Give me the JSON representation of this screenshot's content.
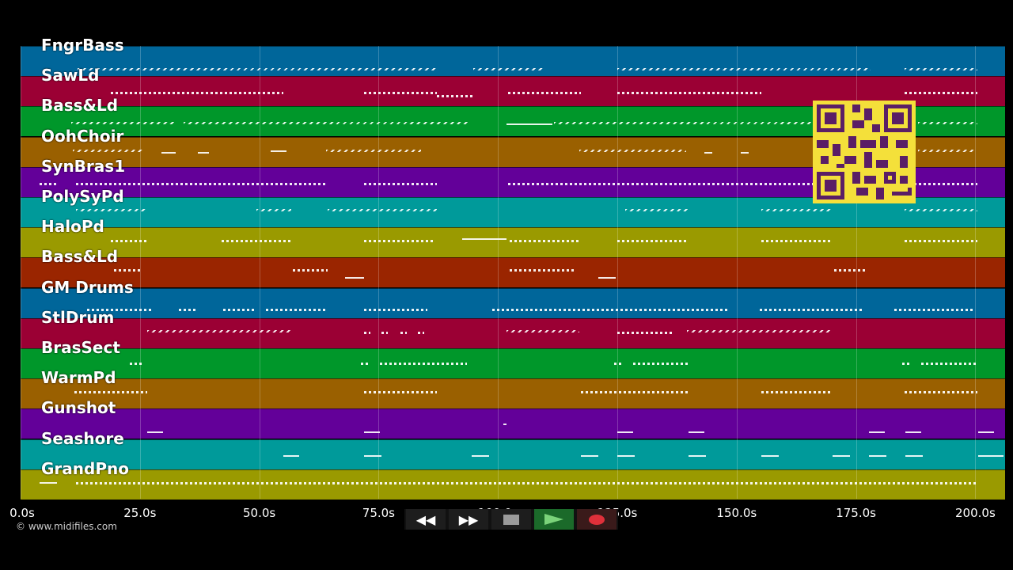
{
  "tracks": [
    {
      "name": "FngrBass",
      "color": "#00669a"
    },
    {
      "name": "SawLd",
      "color": "#9b0034"
    },
    {
      "name": "Bass&Ld",
      "color": "#00972a"
    },
    {
      "name": "OohChoir",
      "color": "#9a6000"
    },
    {
      "name": "SynBras1",
      "color": "#630099"
    },
    {
      "name": "PolySyPd",
      "color": "#009a9a"
    },
    {
      "name": "HaloPd",
      "color": "#9a9a00"
    },
    {
      "name": "Bass&Ld",
      "color": "#9a2500"
    },
    {
      "name": "GM Drums",
      "color": "#00669a"
    },
    {
      "name": "StlDrum",
      "color": "#9b0034"
    },
    {
      "name": "BrasSect",
      "color": "#00972a"
    },
    {
      "name": "WarmPd",
      "color": "#9a6000"
    },
    {
      "name": "Gunshot",
      "color": "#630099"
    },
    {
      "name": "Seashore",
      "color": "#009a9a"
    },
    {
      "name": "GrandPno",
      "color": "#9a9a00"
    }
  ],
  "timeline": {
    "ticks": [
      "0.0s",
      "25.0s",
      "50.0s",
      "75.0s",
      "100.0s",
      "125.0s",
      "150.0s",
      "175.0s",
      "200.0s"
    ]
  },
  "credit": "© www.midifiles.com",
  "transport": {
    "rewind_label": "◀◀",
    "forward_label": "▶▶",
    "stop_icon": "stop-icon",
    "play_icon": "play-icon",
    "record_icon": "record-icon"
  }
}
